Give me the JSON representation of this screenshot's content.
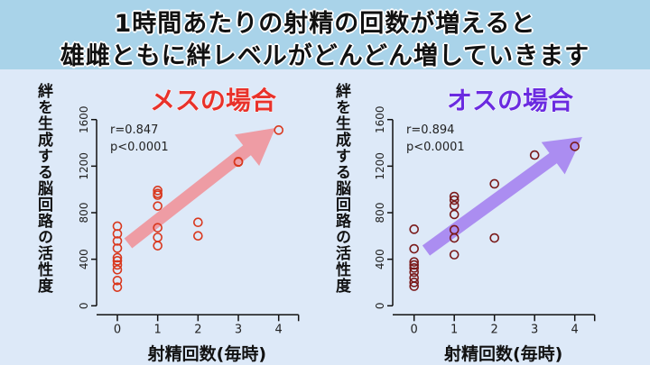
{
  "title": {
    "line1": "1時間あたりの射精の回数が増えると",
    "line2": "雄雌ともに絆レベルがどんどん増していきます"
  },
  "colors": {
    "banner": "#a9d3e9",
    "panel": "#dde9f8",
    "female": "#e8322b",
    "male": "#6a2be0",
    "female_points": "#d9381e",
    "male_points": "#7a1a1a",
    "female_arrow": "#f0939a",
    "male_arrow": "#a583f0"
  },
  "chart_data": [
    {
      "type": "scatter",
      "title": "メスの場合",
      "xlabel": "射精回数(毎時)",
      "ylabel": "絆を生成する脳回路の活性度",
      "xlim": [
        0,
        4
      ],
      "ylim": [
        0,
        1600
      ],
      "xticks": [
        "0",
        "1",
        "2",
        "3",
        "4"
      ],
      "yticks": [
        "0",
        "400",
        "800",
        "1200",
        "1600"
      ],
      "annotation": [
        "r=0.847",
        "p<0.0001"
      ],
      "trend_arrow": true,
      "points": [
        [
          0,
          684
        ],
        [
          0,
          619
        ],
        [
          0,
          557
        ],
        [
          0,
          495
        ],
        [
          0,
          413
        ],
        [
          0,
          387
        ],
        [
          0,
          351
        ],
        [
          0,
          310
        ],
        [
          0,
          217
        ],
        [
          0,
          160
        ],
        [
          1,
          991
        ],
        [
          1,
          965
        ],
        [
          1,
          950
        ],
        [
          1,
          857
        ],
        [
          1,
          671
        ],
        [
          1,
          588
        ],
        [
          1,
          516
        ],
        [
          2,
          717
        ],
        [
          2,
          601
        ],
        [
          3,
          1239
        ],
        [
          3,
          1235
        ],
        [
          4,
          1510
        ]
      ]
    },
    {
      "type": "scatter",
      "title": "オスの場合",
      "xlabel": "射精回数(毎時)",
      "ylabel": "絆を生成する脳回路の活性度",
      "xlim": [
        0,
        4
      ],
      "ylim": [
        0,
        1600
      ],
      "xticks": [
        "0",
        "1",
        "2",
        "3",
        "4"
      ],
      "yticks": [
        "0",
        "400",
        "800",
        "1200",
        "1600"
      ],
      "annotation": [
        "r=0.894",
        "p<0.0001"
      ],
      "trend_arrow": true,
      "points": [
        [
          0,
          658
        ],
        [
          0,
          490
        ],
        [
          0,
          377
        ],
        [
          0,
          351
        ],
        [
          0,
          325
        ],
        [
          0,
          289
        ],
        [
          0,
          240
        ],
        [
          0,
          201
        ],
        [
          0,
          168
        ],
        [
          1,
          939
        ],
        [
          1,
          908
        ],
        [
          1,
          862
        ],
        [
          1,
          785
        ],
        [
          1,
          653
        ],
        [
          1,
          583
        ],
        [
          1,
          439
        ],
        [
          2,
          1048
        ],
        [
          2,
          583
        ],
        [
          3,
          1295
        ],
        [
          4,
          1370
        ]
      ]
    }
  ]
}
